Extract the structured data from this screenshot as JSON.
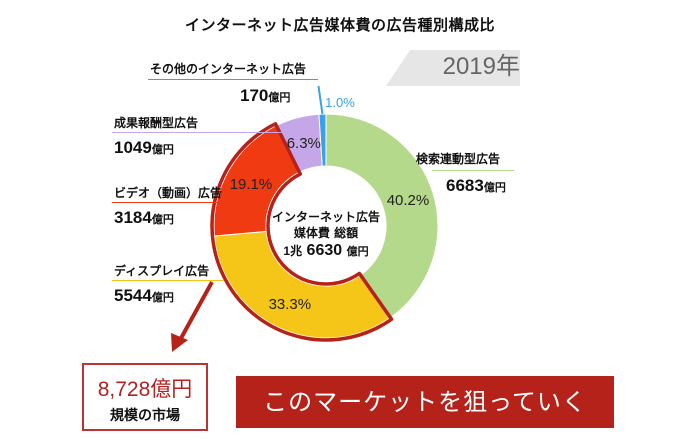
{
  "title": "インターネット広告媒体費の広告種別構成比",
  "year_label": "2019年",
  "center": {
    "line1": "インターネット広告",
    "line2": "媒体費 総額",
    "amount_prefix": "1兆",
    "amount_num": "6630",
    "amount_unit": "億円"
  },
  "chart_data": {
    "type": "pie",
    "slices": [
      {
        "label": "検索連動型広告",
        "amount": "6683",
        "unit": "億円",
        "percent": 40.2,
        "percent_label": "40.2%",
        "color": "#b5d98a"
      },
      {
        "label": "ディスプレイ広告",
        "amount": "5544",
        "unit": "億円",
        "percent": 33.3,
        "percent_label": "33.3%",
        "color": "#f5c518"
      },
      {
        "label": "ビデオ（動画）広告",
        "amount": "3184",
        "unit": "億円",
        "percent": 19.1,
        "percent_label": "19.1%",
        "color": "#f03a12"
      },
      {
        "label": "成果報酬型広告",
        "amount": "1049",
        "unit": "億円",
        "percent": 6.3,
        "percent_label": "6.3%",
        "color": "#c5a6e8"
      },
      {
        "label": "その他のインターネット広告",
        "amount": "170",
        "unit": "億円",
        "percent": 1.0,
        "percent_label": "1.0%",
        "color": "#3aa0e8"
      }
    ]
  },
  "market": {
    "amount": "8,728億円",
    "caption": "規模の市場"
  },
  "banner": "このマーケットを狙っていく",
  "colors": {
    "highlight": "#b5221a"
  }
}
